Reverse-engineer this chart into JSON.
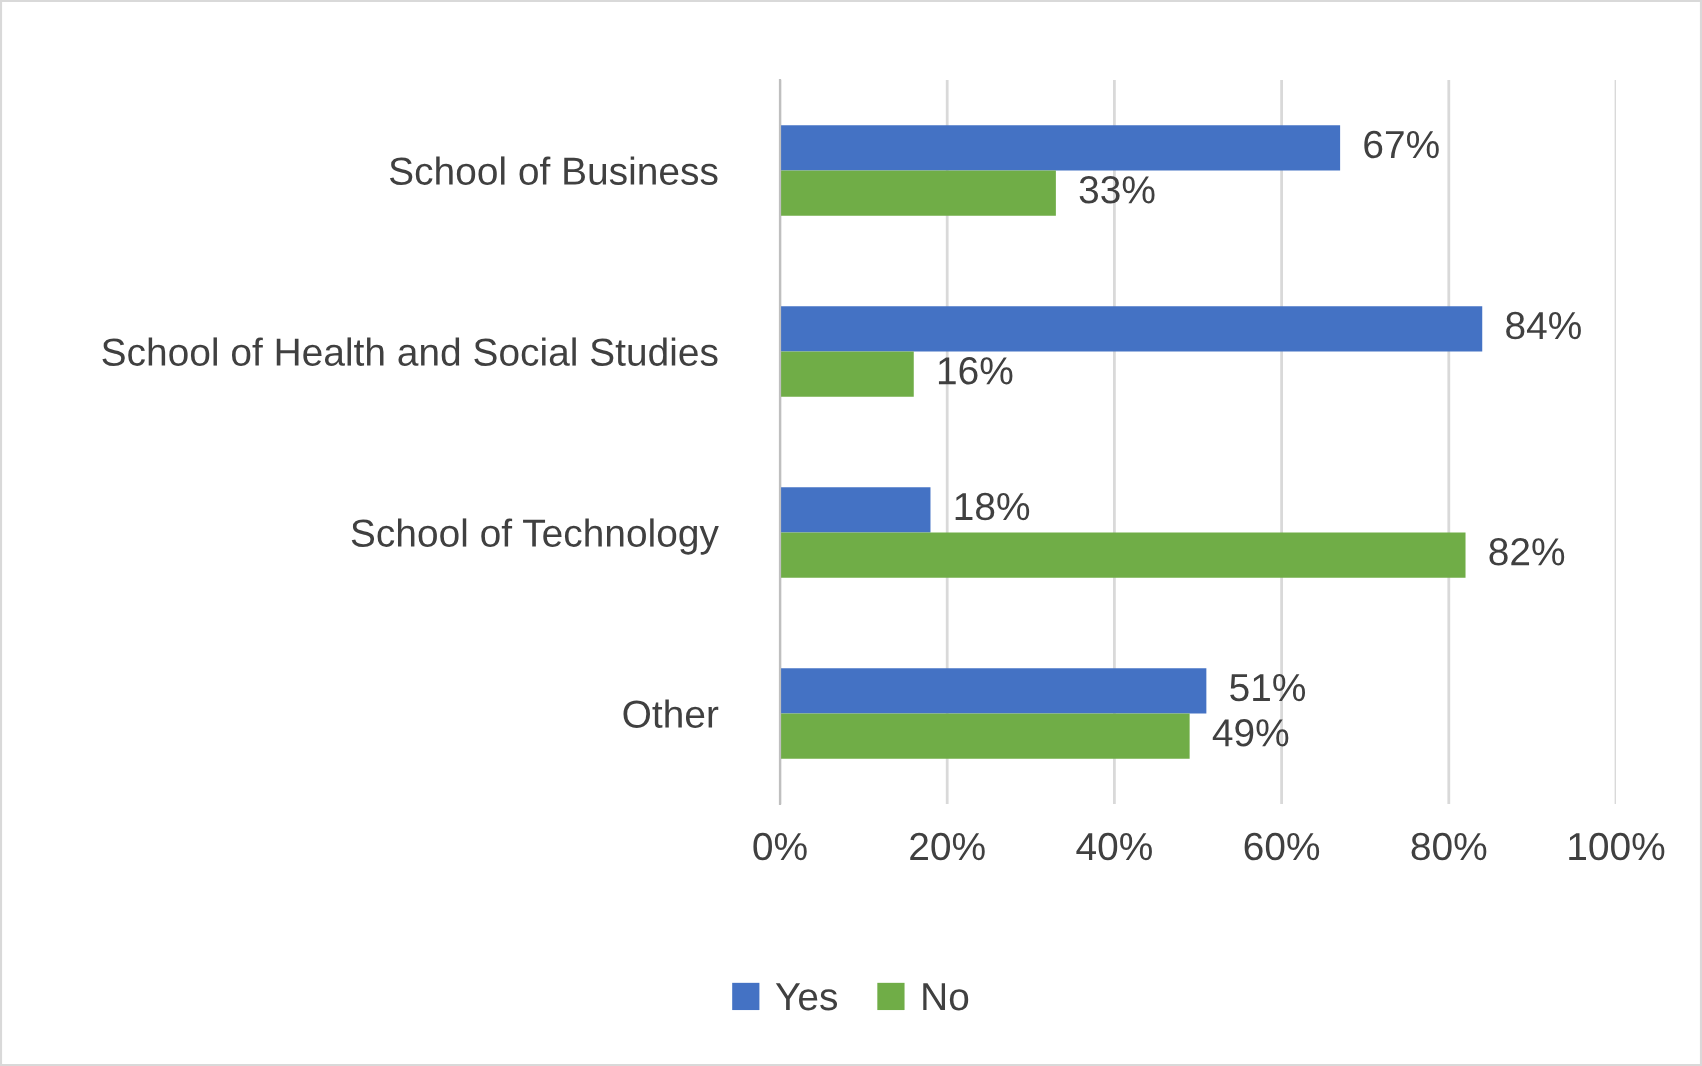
{
  "chart_data": {
    "type": "bar",
    "orientation": "horizontal",
    "categories": [
      "School of Business",
      "School of Health and Social Studies",
      "School of Technology",
      "Other"
    ],
    "series": [
      {
        "name": "Yes",
        "color": "#4472c4",
        "values": [
          67,
          84,
          18,
          51
        ],
        "value_labels": [
          "67%",
          "84%",
          "18%",
          "51%"
        ]
      },
      {
        "name": "No",
        "color": "#70ad47",
        "values": [
          33,
          16,
          82,
          49
        ],
        "value_labels": [
          "33%",
          "16%",
          "82%",
          "49%"
        ]
      }
    ],
    "xlim": [
      0,
      100
    ],
    "xticks": [
      {
        "value": 0,
        "label": "0%"
      },
      {
        "value": 20,
        "label": "20%"
      },
      {
        "value": 40,
        "label": "40%"
      },
      {
        "value": 60,
        "label": "60%"
      },
      {
        "value": 80,
        "label": "80%"
      },
      {
        "value": 100,
        "label": "100%"
      }
    ],
    "grid": "x",
    "legend": "bottom"
  }
}
